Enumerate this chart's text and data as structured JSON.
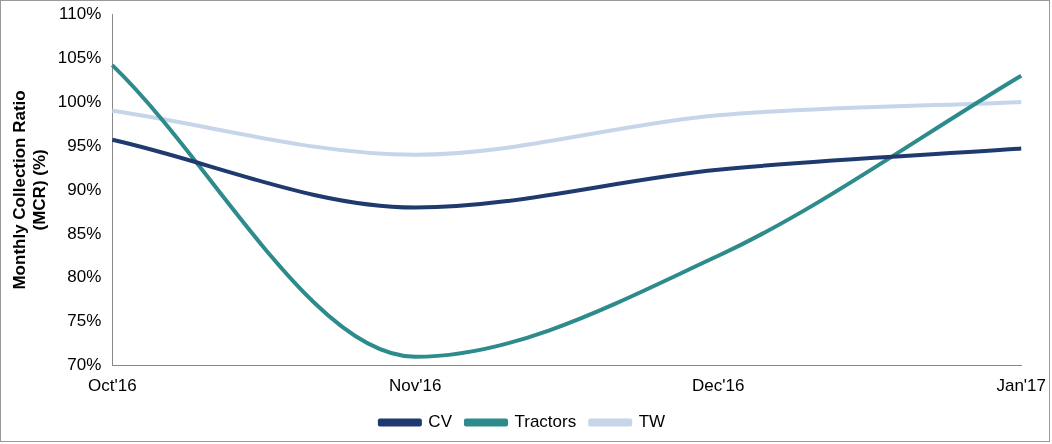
{
  "chart_data": {
    "type": "line",
    "ylabel": "Monthly Collection Ratio (MCR) (%)",
    "categories": [
      "Oct'16",
      "Nov'16",
      "Dec'16",
      "Jan'17"
    ],
    "series": [
      {
        "name": "CV",
        "color": "#1f3a6e",
        "values": [
          95.7,
          88,
          92.3,
          94.7
        ]
      },
      {
        "name": "Tractors",
        "color": "#2e8b8b",
        "values": [
          104.2,
          71,
          82.5,
          103
        ]
      },
      {
        "name": "TW",
        "color": "#c5d5ea",
        "values": [
          99,
          94,
          98.5,
          100
        ]
      }
    ],
    "ylim": [
      70,
      110
    ],
    "yticks": [
      {
        "value": 70,
        "label": "70%"
      },
      {
        "value": 75,
        "label": "75%"
      },
      {
        "value": 80,
        "label": "80%"
      },
      {
        "value": 85,
        "label": "85%"
      },
      {
        "value": 90,
        "label": "90%"
      },
      {
        "value": 95,
        "label": "95%"
      },
      {
        "value": 100,
        "label": "100%"
      },
      {
        "value": 105,
        "label": "105%"
      },
      {
        "value": 110,
        "label": "110%"
      }
    ],
    "grid": false,
    "legend": "bottom",
    "marker": "none",
    "line_style": "solid"
  }
}
